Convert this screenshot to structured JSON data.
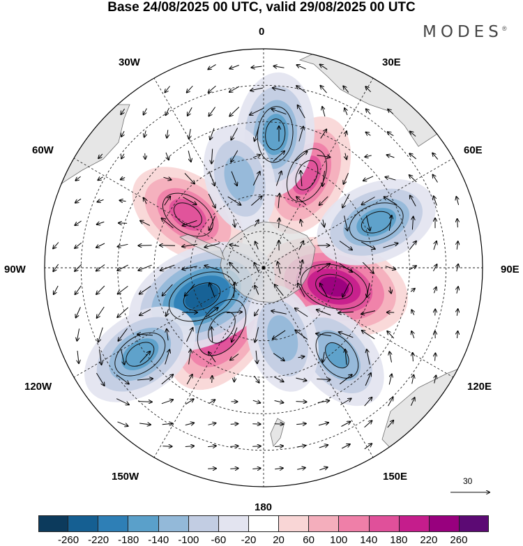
{
  "title": "Base 24/08/2025 00 UTC, valid 29/08/2025 00 UTC",
  "brand": "MODES",
  "brand_mark": "®",
  "longitude_labels": {
    "lon_0": "0",
    "lon_30e": "30E",
    "lon_60e": "60E",
    "lon_90e": "90E",
    "lon_120e": "120E",
    "lon_150e": "150E",
    "lon_180": "180",
    "lon_150w": "150W",
    "lon_120w": "120W",
    "lon_90w": "90W",
    "lon_60w": "60W",
    "lon_30w": "30W"
  },
  "reference_vector_value": "30",
  "colorbar": {
    "colors": [
      "#0c3a5c",
      "#155f92",
      "#2e7fb6",
      "#5aa0ca",
      "#93b9d9",
      "#c2cde3",
      "#e3e4f0",
      "#ffffff",
      "#f9d6d6",
      "#f4aebc",
      "#ef7fa8",
      "#e0509a",
      "#c51d8c",
      "#98007e",
      "#5c0a74"
    ],
    "ticks": [
      "-260",
      "-220",
      "-180",
      "-140",
      "-100",
      "-60",
      "-20",
      "20",
      "60",
      "100",
      "140",
      "180",
      "220",
      "260"
    ]
  },
  "anomaly_cores": [
    {
      "name": "south-indian-positive",
      "lon": 105,
      "colat": 30,
      "value": 230
    },
    {
      "name": "south-atlantic-positive",
      "lon": 25,
      "colat": 42,
      "value": 160
    },
    {
      "name": "drake-positive",
      "lon": -55,
      "colat": 38,
      "value": 160
    },
    {
      "name": "amundsen-positive",
      "lon": -145,
      "colat": 30,
      "value": 200
    },
    {
      "name": "indian-negative",
      "lon": 68,
      "colat": 50,
      "value": -160
    },
    {
      "name": "bellingshausen-negative",
      "lon": -115,
      "colat": 28,
      "value": -240
    },
    {
      "name": "pacific-negative",
      "lon": -125,
      "colat": 62,
      "value": -160
    },
    {
      "name": "tasman-negative",
      "lon": 140,
      "colat": 47,
      "value": -140
    },
    {
      "name": "ross-negative",
      "lon": 165,
      "colat": 30,
      "value": -120
    },
    {
      "name": "atlantic-negative",
      "lon": 5,
      "colat": 55,
      "value": -160
    },
    {
      "name": "weddell-negative",
      "lon": -15,
      "colat": 38,
      "value": -120
    }
  ]
}
